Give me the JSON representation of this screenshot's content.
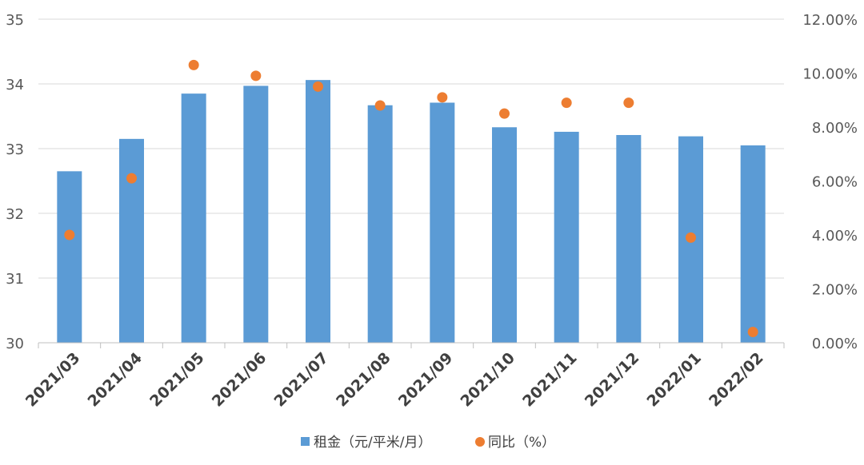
{
  "chart_data": {
    "type": "bar",
    "categories": [
      "2021/03",
      "2021/04",
      "2021/05",
      "2021/06",
      "2021/07",
      "2021/08",
      "2021/09",
      "2021/10",
      "2021/11",
      "2021/12",
      "2022/01",
      "2022/02"
    ],
    "series": [
      {
        "name": "租金（元/平米/月）",
        "type": "bar",
        "axis": "left",
        "color": "#5B9BD5",
        "values": [
          32.65,
          33.15,
          33.85,
          33.97,
          34.06,
          33.67,
          33.71,
          33.33,
          33.26,
          33.21,
          33.19,
          33.05
        ]
      },
      {
        "name": "同比（%）",
        "type": "scatter",
        "axis": "right",
        "color": "#ED7D31",
        "values": [
          4.0,
          6.1,
          10.3,
          9.9,
          9.5,
          8.8,
          9.1,
          8.5,
          8.9,
          8.9,
          3.9,
          0.4
        ]
      }
    ],
    "ylim_left": [
      30,
      35
    ],
    "yticks_left": [
      "30",
      "31",
      "32",
      "33",
      "34",
      "35"
    ],
    "ylim_right": [
      0,
      12
    ],
    "yticks_right": [
      "0.00%",
      "2.00%",
      "4.00%",
      "6.00%",
      "8.00%",
      "10.00%",
      "12.00%"
    ],
    "grid": true,
    "legend_position": "bottom"
  }
}
